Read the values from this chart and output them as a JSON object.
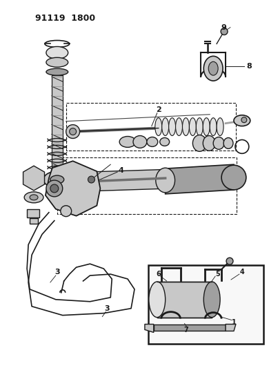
{
  "title": "91119  1800",
  "bg_color": "#ffffff",
  "lc": "#1a1a1a",
  "figsize": [
    3.9,
    5.33
  ],
  "dpi": 100,
  "gray1": "#c8c8c8",
  "gray2": "#a0a0a0",
  "gray3": "#e0e0e0",
  "gray4": "#707070"
}
